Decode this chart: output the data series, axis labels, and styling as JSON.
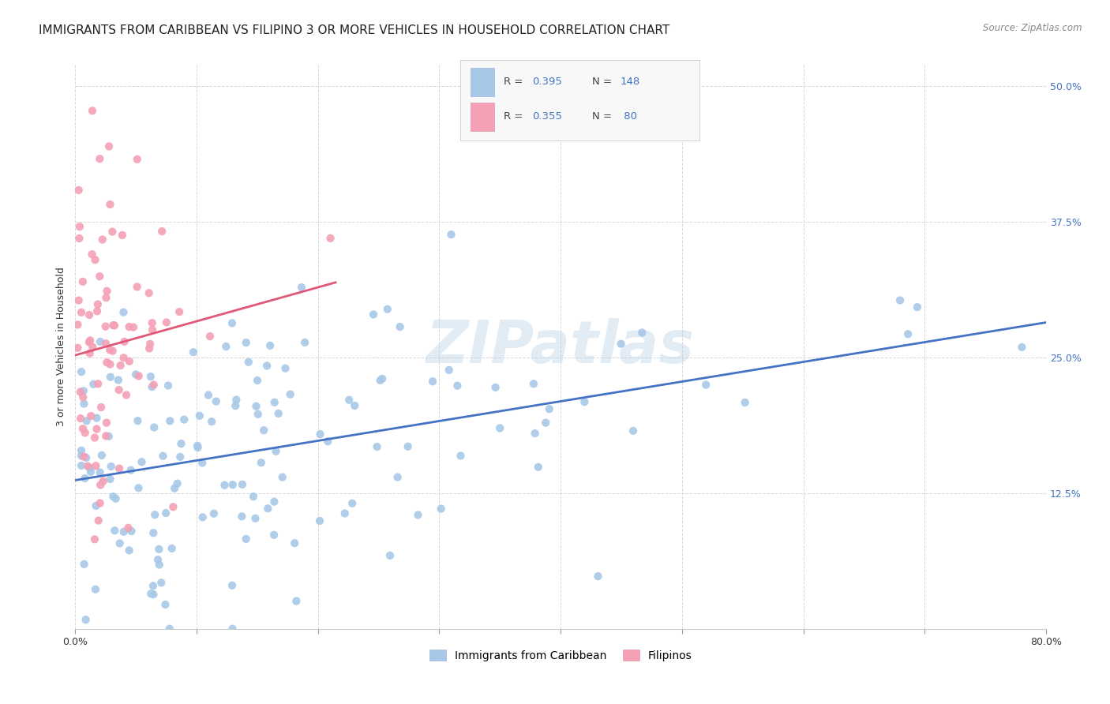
{
  "title": "IMMIGRANTS FROM CARIBBEAN VS FILIPINO 3 OR MORE VEHICLES IN HOUSEHOLD CORRELATION CHART",
  "source": "Source: ZipAtlas.com",
  "ylabel": "3 or more Vehicles in Household",
  "yticks": [
    "12.5%",
    "25.0%",
    "37.5%",
    "50.0%"
  ],
  "ytick_vals": [
    0.125,
    0.25,
    0.375,
    0.5
  ],
  "xlim": [
    0.0,
    0.8
  ],
  "ylim": [
    0.0,
    0.52
  ],
  "caribbean_R": 0.395,
  "caribbean_N": 148,
  "filipino_R": 0.355,
  "filipino_N": 80,
  "caribbean_color": "#a8c8e8",
  "filipino_color": "#f4a0b5",
  "caribbean_line_color": "#4472c4",
  "filipino_line_color": "#e05878",
  "legend_box_caribbean": "#a8c8e8",
  "legend_box_filipino": "#f4a0b5",
  "watermark": "ZIPatlas",
  "background_color": "#ffffff",
  "grid_color": "#d8d8d8",
  "title_fontsize": 11,
  "axis_label_fontsize": 9,
  "tick_fontsize": 9,
  "legend_text_color": "#4472c4",
  "legend_R_label_color": "#333333"
}
